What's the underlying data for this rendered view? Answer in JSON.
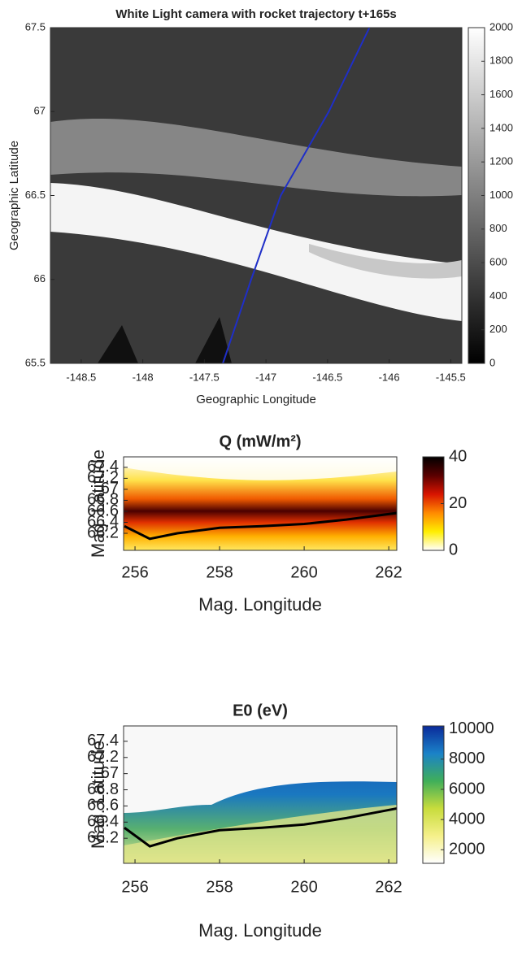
{
  "chart_data": [
    {
      "type": "image",
      "title": "White Light camera with rocket trajectory t+165s",
      "xlabel": "Geographic Longitude",
      "ylabel": "Geographic Latitude",
      "xlim": [
        -148.75,
        -145.41
      ],
      "ylim": [
        65.5,
        67.5
      ],
      "xticks": [
        -148.5,
        -148,
        -147.5,
        -147,
        -146.5,
        -146,
        -145.5
      ],
      "yticks": [
        65.5,
        66,
        66.5,
        67,
        67.5
      ],
      "series": [
        {
          "color": "#1f2fc8",
          "x": [
            -147.35,
            -147.12,
            -146.88,
            -146.49,
            -146.16
          ],
          "y": [
            65.5,
            66,
            66.5,
            67,
            67.5
          ]
        }
      ],
      "colorbar": {
        "lim": [
          0,
          2000
        ],
        "ticks": [
          0,
          200,
          400,
          600,
          800,
          1000,
          1200,
          1400,
          1600,
          1800,
          2000
        ],
        "colors": [
          "#000000",
          "#ffffff"
        ]
      }
    },
    {
      "type": "contour",
      "title": "Q (mW/m²)",
      "xlabel": "Mag. Longitude",
      "ylabel": "Mag. Latitude",
      "xlim": [
        255.73,
        262.19
      ],
      "ylim": [
        65.89,
        67.59
      ],
      "xticks": [
        256,
        258,
        260,
        262
      ],
      "yticks": [
        66.2,
        66.4,
        66.6,
        66.8,
        67,
        67.2,
        67.4
      ],
      "series": [
        {
          "color": "#000000",
          "x": [
            255.75,
            256.35,
            257,
            258,
            259,
            260,
            261,
            262.2
          ],
          "y": [
            66.33,
            66.1,
            66.2,
            66.3,
            66.33,
            66.37,
            66.45,
            66.57
          ]
        }
      ],
      "colorbar": {
        "lim": [
          0,
          40
        ],
        "ticks": [
          0,
          20,
          40
        ],
        "colors": [
          "#ffffff",
          "#ffee00",
          "#ff8a00",
          "#d81400",
          "#5a0000",
          "#000000"
        ]
      }
    },
    {
      "type": "contour",
      "title": "E0 (eV)",
      "xlabel": "Mag. Longitude",
      "ylabel": "Mag. Latitude",
      "xlim": [
        255.73,
        262.19
      ],
      "ylim": [
        65.89,
        67.59
      ],
      "xticks": [
        256,
        258,
        260,
        262
      ],
      "yticks": [
        66.2,
        66.4,
        66.6,
        66.8,
        67,
        67.2,
        67.4
      ],
      "series": [
        {
          "color": "#000000",
          "x": [
            255.75,
            256.35,
            257,
            258,
            259,
            260,
            261,
            262.2
          ],
          "y": [
            66.33,
            66.1,
            66.2,
            66.3,
            66.33,
            66.37,
            66.45,
            66.57
          ]
        }
      ],
      "colorbar": {
        "lim": [
          1100,
          10200
        ],
        "ticks": [
          2000,
          4000,
          6000,
          8000,
          10000
        ],
        "colors": [
          "#ffffff",
          "#f5f08a",
          "#c8dc3c",
          "#3fae5a",
          "#1b82c8",
          "#0a2a9a"
        ]
      }
    }
  ]
}
